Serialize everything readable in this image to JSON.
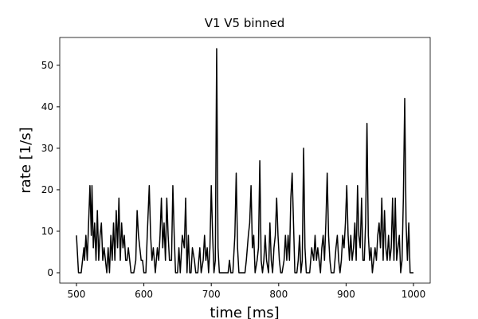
{
  "chart_data": {
    "type": "line",
    "title": "V1 V5 binned",
    "x_label": "time [ms]",
    "y_label": "rate [1/s]",
    "color": "#000000",
    "x": [
      500,
      503,
      507,
      509,
      511,
      512,
      514,
      516,
      518,
      520,
      522,
      523,
      525,
      527,
      529,
      531,
      533,
      535,
      537,
      539,
      541,
      543,
      545,
      547,
      549,
      551,
      553,
      555,
      557,
      559,
      561,
      563,
      565,
      567,
      569,
      571,
      573,
      575,
      577,
      579,
      581,
      585,
      588,
      590,
      592,
      594,
      596,
      598,
      600,
      603,
      605,
      608,
      610,
      612,
      614,
      617,
      620,
      622,
      624,
      626,
      628,
      630,
      632,
      634,
      636,
      638,
      641,
      643,
      645,
      647,
      650,
      652,
      654,
      657,
      660,
      662,
      664,
      666,
      668,
      670,
      672,
      675,
      677,
      680,
      683,
      685,
      688,
      690,
      692,
      694,
      696,
      698,
      700,
      702,
      704,
      706,
      708,
      710,
      712,
      715,
      720,
      725,
      727,
      729,
      732,
      735,
      737,
      739,
      741,
      746,
      750,
      752,
      755,
      757,
      759,
      761,
      763,
      765,
      768,
      770,
      772,
      774,
      776,
      778,
      780,
      782,
      785,
      787,
      789,
      791,
      793,
      795,
      797,
      799,
      801,
      803,
      805,
      808,
      810,
      812,
      814,
      816,
      818,
      820,
      822,
      824,
      827,
      829,
      831,
      833,
      835,
      837,
      839,
      841,
      843,
      846,
      849,
      852,
      854,
      856,
      858,
      860,
      862,
      864,
      866,
      868,
      870,
      872,
      874,
      876,
      878,
      882,
      885,
      887,
      889,
      891,
      893,
      895,
      897,
      899,
      901,
      903,
      905,
      907,
      909,
      911,
      913,
      915,
      917,
      919,
      921,
      923,
      925,
      927,
      929,
      931,
      933,
      935,
      937,
      939,
      941,
      943,
      945,
      947,
      949,
      951,
      953,
      955,
      957,
      959,
      961,
      963,
      965,
      967,
      969,
      971,
      973,
      975,
      977,
      979,
      981,
      983,
      985,
      987,
      989,
      991,
      993,
      995,
      998,
      1000
    ],
    "values": [
      9,
      0,
      0,
      3,
      6,
      3,
      9,
      3,
      12,
      21,
      9,
      21,
      6,
      12,
      3,
      15,
      3,
      9,
      12,
      3,
      6,
      3,
      0,
      6,
      0,
      9,
      3,
      12,
      3,
      15,
      6,
      18,
      3,
      12,
      6,
      9,
      3,
      3,
      6,
      3,
      0,
      0,
      3,
      15,
      9,
      6,
      3,
      3,
      0,
      0,
      9,
      21,
      9,
      3,
      6,
      0,
      6,
      3,
      9,
      18,
      6,
      12,
      3,
      18,
      9,
      3,
      3,
      21,
      9,
      0,
      0,
      6,
      0,
      9,
      6,
      18,
      0,
      9,
      0,
      0,
      6,
      3,
      0,
      0,
      6,
      0,
      3,
      9,
      3,
      6,
      0,
      6,
      21,
      9,
      0,
      3,
      54,
      6,
      0,
      0,
      0,
      0,
      3,
      0,
      0,
      9,
      24,
      6,
      0,
      0,
      0,
      3,
      9,
      12,
      21,
      6,
      9,
      0,
      3,
      6,
      27,
      3,
      0,
      3,
      9,
      3,
      0,
      12,
      3,
      0,
      6,
      9,
      18,
      9,
      3,
      0,
      0,
      3,
      9,
      3,
      9,
      3,
      18,
      24,
      12,
      0,
      0,
      3,
      9,
      0,
      3,
      30,
      6,
      0,
      0,
      0,
      6,
      3,
      9,
      3,
      6,
      3,
      0,
      6,
      9,
      3,
      12,
      24,
      9,
      3,
      0,
      0,
      6,
      9,
      3,
      0,
      3,
      9,
      6,
      12,
      21,
      9,
      3,
      9,
      3,
      6,
      12,
      3,
      21,
      9,
      6,
      18,
      3,
      3,
      12,
      36,
      9,
      3,
      6,
      0,
      3,
      6,
      3,
      9,
      12,
      6,
      18,
      3,
      15,
      6,
      3,
      9,
      3,
      6,
      18,
      3,
      18,
      3,
      6,
      9,
      0,
      3,
      18,
      42,
      12,
      3,
      12,
      0,
      0,
      0
    ],
    "xlim": [
      475.2,
      1024.8
    ],
    "ylim": [
      -2.5,
      56.7
    ],
    "xticks": [
      500,
      600,
      700,
      800,
      900,
      1000
    ],
    "yticks": [
      0,
      10,
      20,
      30,
      40,
      50
    ]
  }
}
